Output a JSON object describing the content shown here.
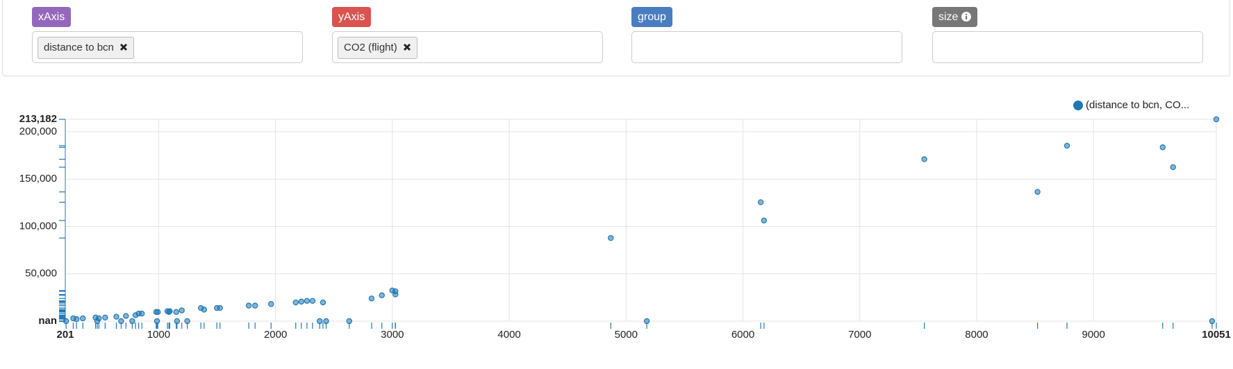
{
  "controls": {
    "x_axis": {
      "label": "xAxis",
      "chips": [
        "distance to bcn"
      ]
    },
    "y_axis": {
      "label": "yAxis",
      "chips": [
        "CO2 (flight)"
      ]
    },
    "group": {
      "label": "group"
    },
    "size": {
      "label": "size"
    }
  },
  "chart_data": {
    "type": "scatter",
    "series": [
      {
        "name": "(distance to bcn, CO...",
        "color": "#1f77b4",
        "x": [
          4869,
          5177,
          6152,
          6180,
          7552,
          8521,
          8773,
          9592,
          9681,
          10051,
          10015,
          2999,
          3026,
          3026,
          2822,
          2910,
          2631,
          2406,
          2378,
          2433,
          2317,
          2269,
          2221,
          2173,
          1962,
          1825,
          1771,
          1525,
          1498,
          1389,
          1361,
          1245,
          1198,
          1150,
          1157,
          1095,
          1075,
          1088,
          993,
          979,
          986,
          856,
          829,
          802,
          774,
          720,
          679,
          638,
          542,
          488,
          460,
          474,
          351,
          297,
          269,
          208
        ],
        "values": [
          87800,
          0,
          125600,
          106300,
          171000,
          136500,
          185300,
          183600,
          162600,
          213182,
          0,
          32350,
          31500,
          28150,
          23950,
          27300,
          0,
          19750,
          0,
          0,
          21400,
          21400,
          20600,
          19750,
          18060,
          16390,
          16390,
          13860,
          13860,
          12180,
          13860,
          0,
          11340,
          9660,
          0,
          10500,
          10500,
          9660,
          9660,
          9660,
          0,
          7980,
          7980,
          6300,
          0,
          5460,
          0,
          4620,
          3780,
          2940,
          3780,
          0,
          2940,
          2100,
          2940,
          0
        ]
      }
    ],
    "xlim": [
      201,
      10051
    ],
    "xticks": [
      201,
      1000,
      2000,
      3000,
      4000,
      5000,
      6000,
      7000,
      8000,
      9000,
      10051
    ],
    "ylim": [
      0,
      213182
    ],
    "yticks": [
      {
        "value": 0,
        "label": "nan"
      },
      {
        "value": 50000,
        "label": "50,000"
      },
      {
        "value": 100000,
        "label": "100,000"
      },
      {
        "value": 150000,
        "label": "150,000"
      },
      {
        "value": 200000,
        "label": "200,000"
      },
      {
        "value": 213182,
        "label": "213,182"
      }
    ],
    "grid": true,
    "rug": true,
    "legend": "top-right"
  }
}
